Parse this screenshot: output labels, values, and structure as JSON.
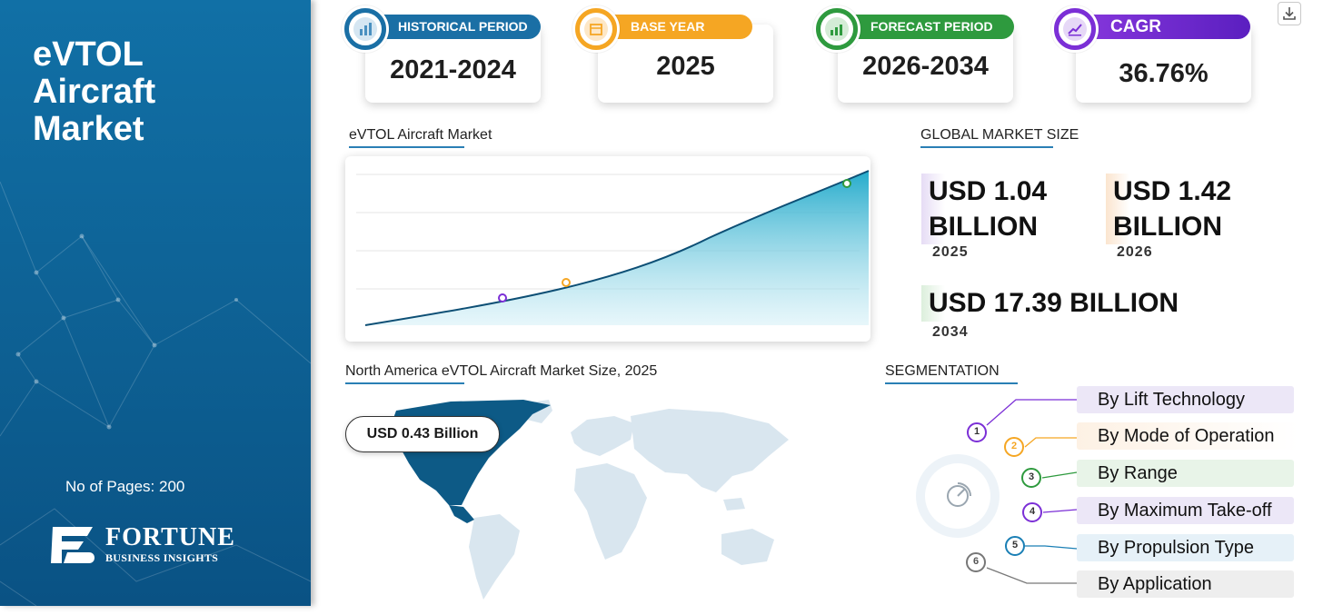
{
  "sidebar": {
    "title_lines": [
      "eVTOL",
      "Aircraft",
      "Market"
    ],
    "pages": "No of Pages: 200",
    "logo_top": "FORTUNE",
    "logo_bottom": "BUSINESS INSIGHTS"
  },
  "stats": [
    {
      "label": "HISTORICAL PERIOD",
      "value": "2021-2024",
      "color": "#1a6fa5",
      "icon": "bar-chart-icon"
    },
    {
      "label": "BASE YEAR",
      "value": "2025",
      "color": "#f5a623",
      "icon": "calendar-icon"
    },
    {
      "label": "FORECAST PERIOD",
      "value": "2026-2034",
      "color": "#2e9a3e",
      "icon": "forecast-chart-icon"
    },
    {
      "label": "CAGR",
      "value": "36.76%",
      "color": "#7b2fd6",
      "icon": "growth-chart-icon"
    }
  ],
  "chart": {
    "heading": "eVTOL Aircraft Market"
  },
  "market_size": {
    "heading": "GLOBAL MARKET SIZE",
    "items": [
      {
        "amount": "USD 1.04 BILLION",
        "amount_line1": "USD 1.04",
        "amount_line2": "BILLION",
        "year": "2025",
        "color": "#e6dcf5"
      },
      {
        "amount": "USD 1.42 BILLION",
        "amount_line1": "USD 1.42",
        "amount_line2": "BILLION",
        "year": "2026",
        "color": "#fbe5cf"
      },
      {
        "amount": "USD 17.39 BILLION",
        "year": "2034",
        "color": "#dcefdc"
      }
    ]
  },
  "map": {
    "heading": "North America eVTOL Aircraft Market Size, 2025",
    "callout": "USD 0.43 Billion"
  },
  "segmentation": {
    "heading": "SEGMENTATION",
    "items": [
      {
        "num": "1",
        "label": "By Lift Technology",
        "color": "#7b2fd6",
        "bg": "#ece7f7"
      },
      {
        "num": "2",
        "label": "By Mode of Operation",
        "color": "#f5a623",
        "bg": "#fdf1e4"
      },
      {
        "num": "3",
        "label": "By Range",
        "color": "#2e9a3e",
        "bg": "#e8f4e8"
      },
      {
        "num": "4",
        "label": "By Maximum Take-off",
        "color": "#7b2fd6",
        "bg": "#ece7f7"
      },
      {
        "num": "5",
        "label": "By Propulsion Type",
        "color": "#1a7fb5",
        "bg": "#e6f1f8"
      },
      {
        "num": "6",
        "label": "By Application",
        "color": "#777777",
        "bg": "#eeeeee"
      }
    ]
  },
  "colors": {
    "sidebar": "#0d5f92",
    "accent": "#2a7fb5",
    "map_highlight": "#0d5a86",
    "map_base": "#d9e6ef"
  }
}
